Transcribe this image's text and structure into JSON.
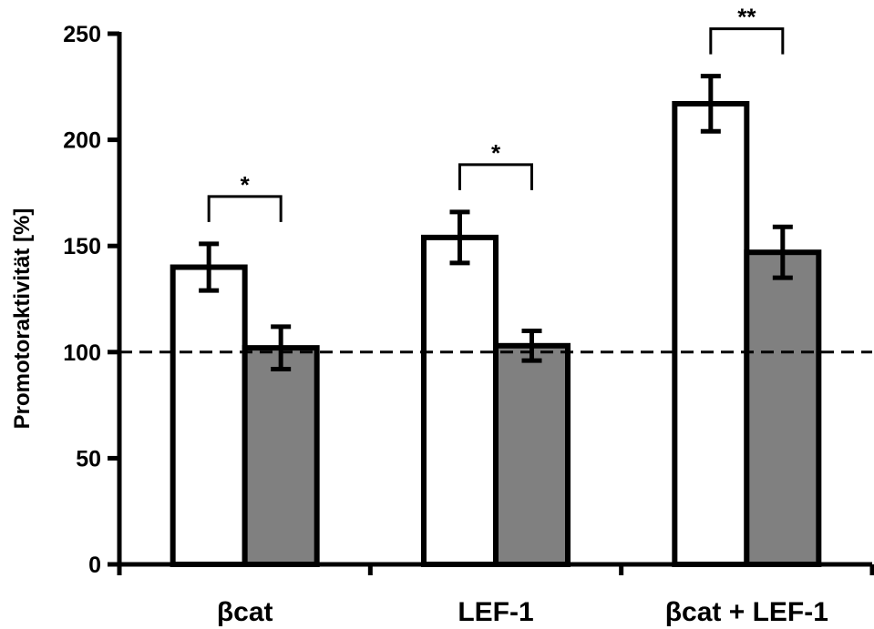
{
  "chart_data": {
    "type": "bar",
    "ylabel": "Promotoraktivität [%]",
    "xlabel": "",
    "categories": [
      "βcat",
      "LEF-1",
      "βcat + LEF-1"
    ],
    "series": [
      {
        "values": [
          140,
          154,
          217
        ],
        "errors": [
          11,
          12,
          13
        ],
        "color": "#ffffff"
      },
      {
        "values": [
          102,
          103,
          147
        ],
        "errors": [
          10,
          7,
          12
        ],
        "color": "#808080"
      }
    ],
    "ylim": [
      0,
      250
    ],
    "yticks": [
      "0",
      "50",
      "100",
      "150",
      "200",
      "250"
    ],
    "reference_line": {
      "y": 100,
      "style": "dashed"
    },
    "significance": [
      "*",
      "*",
      "**"
    ],
    "grid": false,
    "legend": "none"
  }
}
